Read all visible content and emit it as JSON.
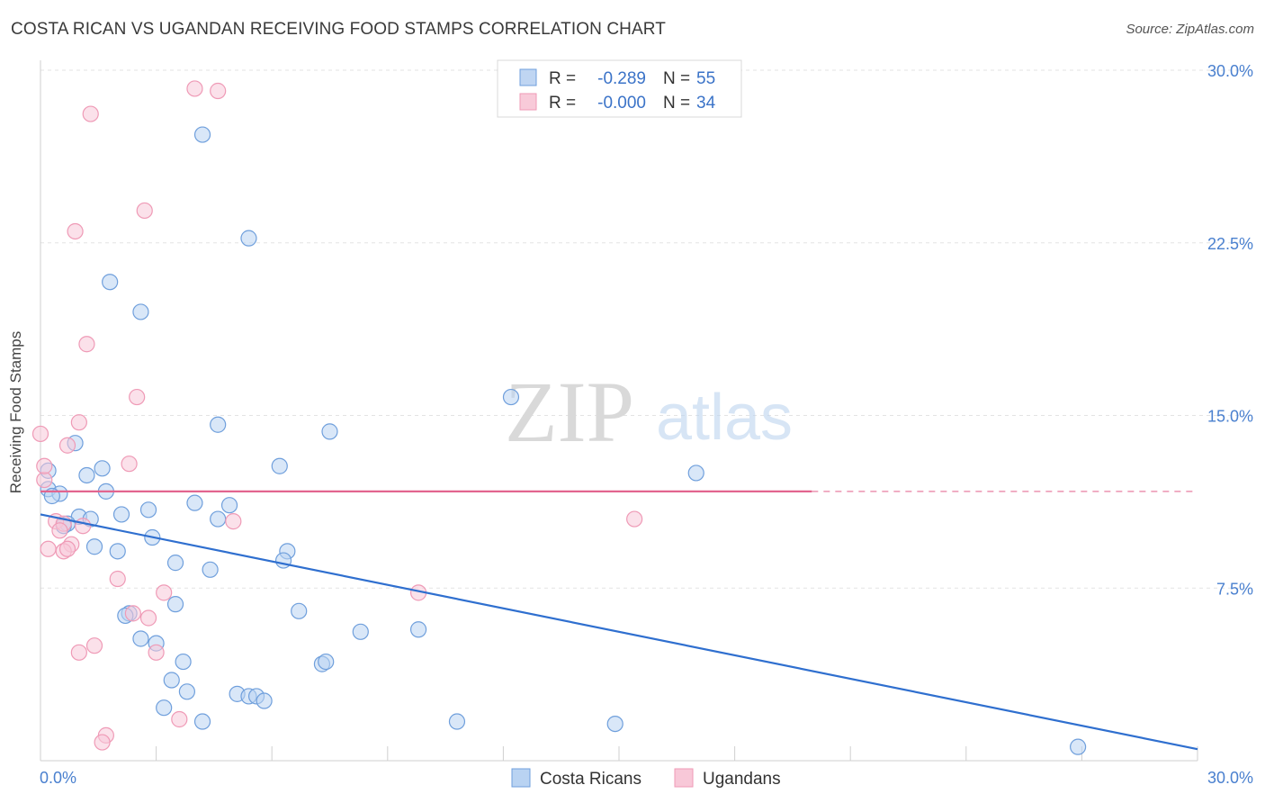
{
  "title": "COSTA RICAN VS UGANDAN RECEIVING FOOD STAMPS CORRELATION CHART",
  "source": "Source: ZipAtlas.com",
  "watermark": {
    "zip": "ZIP",
    "atlas": "atlas"
  },
  "legend_box": {
    "rows": [
      {
        "r_label": "R =",
        "r_value": "-0.289",
        "n_label": "N =",
        "n_value": "55",
        "color": "#a9c7ee"
      },
      {
        "r_label": "R =",
        "r_value": "-0.000",
        "n_label": "N =",
        "n_value": "34",
        "color": "#f5b8cc"
      }
    ]
  },
  "chart_data": {
    "type": "scatter",
    "title": "COSTA RICAN VS UGANDAN RECEIVING FOOD STAMPS CORRELATION CHART",
    "xlabel": "",
    "ylabel": "Receiving Food Stamps",
    "xlim": [
      0,
      30
    ],
    "ylim": [
      0,
      30
    ],
    "x_tick_labels": [
      "0.0%",
      "30.0%"
    ],
    "y_tick_labels": [
      "7.5%",
      "15.0%",
      "22.5%",
      "30.0%"
    ],
    "y_ticks": [
      7.5,
      15.0,
      22.5,
      30.0
    ],
    "legend": [
      "Costa Ricans",
      "Ugandans"
    ],
    "series": [
      {
        "name": "Costa Ricans",
        "color": "#6f9fdc",
        "fill": "#b9d3f2",
        "trend": {
          "x": [
            0,
            30
          ],
          "y": [
            10.7,
            0.5
          ],
          "color": "#2f6fcf"
        },
        "points": [
          [
            4.2,
            27.2
          ],
          [
            5.4,
            22.7
          ],
          [
            1.8,
            20.8
          ],
          [
            2.6,
            19.5
          ],
          [
            12.2,
            15.8
          ],
          [
            4.6,
            14.6
          ],
          [
            7.5,
            14.3
          ],
          [
            0.9,
            13.8
          ],
          [
            6.2,
            12.8
          ],
          [
            1.6,
            12.7
          ],
          [
            17.0,
            12.5
          ],
          [
            1.2,
            12.4
          ],
          [
            0.2,
            11.8
          ],
          [
            0.5,
            11.6
          ],
          [
            1.7,
            11.7
          ],
          [
            0.3,
            11.5
          ],
          [
            4.0,
            11.2
          ],
          [
            4.9,
            11.1
          ],
          [
            2.8,
            10.9
          ],
          [
            2.1,
            10.7
          ],
          [
            1.0,
            10.6
          ],
          [
            4.6,
            10.5
          ],
          [
            1.3,
            10.5
          ],
          [
            0.7,
            10.3
          ],
          [
            0.6,
            10.2
          ],
          [
            2.9,
            9.7
          ],
          [
            1.4,
            9.3
          ],
          [
            2.0,
            9.1
          ],
          [
            6.4,
            9.1
          ],
          [
            6.3,
            8.7
          ],
          [
            3.5,
            8.6
          ],
          [
            4.4,
            8.3
          ],
          [
            3.5,
            6.8
          ],
          [
            6.7,
            6.5
          ],
          [
            2.3,
            6.4
          ],
          [
            2.2,
            6.3
          ],
          [
            8.3,
            5.6
          ],
          [
            9.8,
            5.7
          ],
          [
            2.6,
            5.3
          ],
          [
            3.0,
            5.1
          ],
          [
            3.7,
            4.3
          ],
          [
            7.3,
            4.2
          ],
          [
            7.4,
            4.3
          ],
          [
            3.4,
            3.5
          ],
          [
            3.8,
            3.0
          ],
          [
            5.1,
            2.9
          ],
          [
            5.4,
            2.8
          ],
          [
            5.6,
            2.8
          ],
          [
            5.8,
            2.6
          ],
          [
            3.2,
            2.3
          ],
          [
            4.2,
            1.7
          ],
          [
            10.8,
            1.7
          ],
          [
            14.9,
            1.6
          ],
          [
            26.9,
            0.6
          ],
          [
            0.2,
            12.6
          ]
        ]
      },
      {
        "name": "Ugandans",
        "color": "#ef9ab6",
        "fill": "#f8c8d8",
        "trend": {
          "x": [
            0,
            20
          ],
          "y": [
            11.7,
            11.7
          ],
          "dashed_to": 30,
          "color": "#e2658f"
        },
        "points": [
          [
            4.0,
            29.2
          ],
          [
            4.6,
            29.1
          ],
          [
            1.3,
            28.1
          ],
          [
            2.7,
            23.9
          ],
          [
            0.9,
            23.0
          ],
          [
            1.2,
            18.1
          ],
          [
            2.5,
            15.8
          ],
          [
            1.0,
            14.7
          ],
          [
            0.0,
            14.2
          ],
          [
            0.7,
            13.7
          ],
          [
            2.3,
            12.9
          ],
          [
            0.1,
            12.2
          ],
          [
            0.4,
            10.4
          ],
          [
            5.0,
            10.4
          ],
          [
            15.4,
            10.5
          ],
          [
            0.6,
            10.3
          ],
          [
            1.1,
            10.2
          ],
          [
            0.5,
            10.0
          ],
          [
            0.8,
            9.4
          ],
          [
            0.2,
            9.2
          ],
          [
            0.6,
            9.1
          ],
          [
            0.7,
            9.2
          ],
          [
            2.0,
            7.9
          ],
          [
            3.2,
            7.3
          ],
          [
            9.8,
            7.3
          ],
          [
            2.8,
            6.2
          ],
          [
            2.4,
            6.4
          ],
          [
            1.4,
            5.0
          ],
          [
            1.0,
            4.7
          ],
          [
            3.0,
            4.7
          ],
          [
            3.6,
            1.8
          ],
          [
            1.7,
            1.1
          ],
          [
            1.6,
            0.8
          ],
          [
            0.1,
            12.8
          ]
        ]
      }
    ]
  }
}
